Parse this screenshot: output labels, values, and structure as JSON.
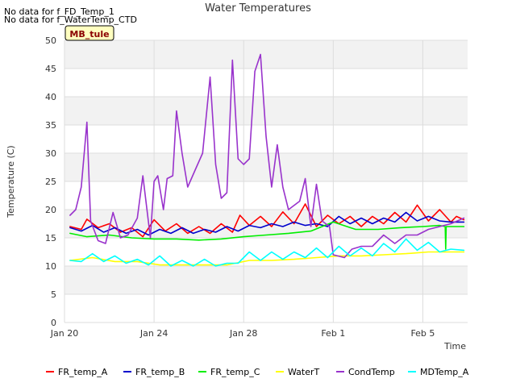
{
  "notices": [
    "No data for f_FD_Temp_1",
    "No data for f_WaterTemp_CTD"
  ],
  "site_badge": "MB_tule",
  "colors": {
    "plot_bg": "#f2f2f2",
    "band_white": "#ffffff",
    "grid": "#dddddd",
    "badge_bg": "#ffffc0",
    "badge_border": "#000000",
    "badge_text": "#8b0000"
  },
  "chart_data": {
    "type": "line",
    "title": "Water Temperatures",
    "xlabel": "Time",
    "ylabel": "Temperature (C)",
    "xlim": [
      "2024-01-20",
      "2024-02-07"
    ],
    "ylim": [
      0,
      50
    ],
    "x_ticks": [
      {
        "date": "2024-01-20",
        "label": "Jan 20"
      },
      {
        "date": "2024-01-24",
        "label": "Jan 24"
      },
      {
        "date": "2024-01-28",
        "label": "Jan 28"
      },
      {
        "date": "2024-02-01",
        "label": "Feb 1"
      },
      {
        "date": "2024-02-05",
        "label": "Feb 5"
      }
    ],
    "y_ticks": [
      0,
      5,
      10,
      15,
      20,
      25,
      30,
      35,
      40,
      45,
      50
    ],
    "grid": true,
    "legend_position": "bottom",
    "series": [
      {
        "name": "FR_temp_A",
        "color": "#ff0000",
        "points": [
          [
            "2024-01-20 06:00",
            17.0
          ],
          [
            "2024-01-20 18:00",
            16.5
          ],
          [
            "2024-01-21 00:00",
            18.3
          ],
          [
            "2024-01-21 12:00",
            16.8
          ],
          [
            "2024-01-22 00:00",
            17.5
          ],
          [
            "2024-01-22 12:00",
            16.0
          ],
          [
            "2024-01-23 00:00",
            16.8
          ],
          [
            "2024-01-23 12:00",
            15.2
          ],
          [
            "2024-01-24 00:00",
            18.2
          ],
          [
            "2024-01-24 12:00",
            16.2
          ],
          [
            "2024-01-25 00:00",
            17.5
          ],
          [
            "2024-01-25 12:00",
            15.8
          ],
          [
            "2024-01-26 00:00",
            17.0
          ],
          [
            "2024-01-26 12:00",
            15.8
          ],
          [
            "2024-01-27 00:00",
            17.5
          ],
          [
            "2024-01-27 12:00",
            16.0
          ],
          [
            "2024-01-27 20:00",
            19.0
          ],
          [
            "2024-01-28 06:00",
            17.2
          ],
          [
            "2024-01-28 18:00",
            18.8
          ],
          [
            "2024-01-29 06:00",
            17.0
          ],
          [
            "2024-01-29 18:00",
            19.6
          ],
          [
            "2024-01-30 06:00",
            17.5
          ],
          [
            "2024-01-30 18:00",
            21.0
          ],
          [
            "2024-01-31 06:00",
            17.0
          ],
          [
            "2024-01-31 18:00",
            19.0
          ],
          [
            "2024-02-01 06:00",
            17.5
          ],
          [
            "2024-02-01 18:00",
            18.8
          ],
          [
            "2024-02-02 06:00",
            17.0
          ],
          [
            "2024-02-02 18:00",
            18.8
          ],
          [
            "2024-02-03 06:00",
            17.5
          ],
          [
            "2024-02-03 18:00",
            19.5
          ],
          [
            "2024-02-04 06:00",
            17.8
          ],
          [
            "2024-02-04 18:00",
            20.8
          ],
          [
            "2024-02-05 06:00",
            18.0
          ],
          [
            "2024-02-05 18:00",
            20.0
          ],
          [
            "2024-02-06 06:00",
            17.8
          ],
          [
            "2024-02-06 12:00",
            18.8
          ],
          [
            "2024-02-06 20:00",
            18.2
          ]
        ]
      },
      {
        "name": "FR_temp_B",
        "color": "#0000cc",
        "points": [
          [
            "2024-01-20 06:00",
            16.8
          ],
          [
            "2024-01-20 18:00",
            16.2
          ],
          [
            "2024-01-21 06:00",
            17.2
          ],
          [
            "2024-01-21 18:00",
            16.0
          ],
          [
            "2024-01-22 06:00",
            16.8
          ],
          [
            "2024-01-22 18:00",
            15.8
          ],
          [
            "2024-01-23 06:00",
            16.5
          ],
          [
            "2024-01-23 18:00",
            15.5
          ],
          [
            "2024-01-24 06:00",
            16.5
          ],
          [
            "2024-01-24 18:00",
            15.8
          ],
          [
            "2024-01-25 06:00",
            16.8
          ],
          [
            "2024-01-25 18:00",
            15.8
          ],
          [
            "2024-01-26 06:00",
            16.5
          ],
          [
            "2024-01-26 18:00",
            16.0
          ],
          [
            "2024-01-27 06:00",
            17.0
          ],
          [
            "2024-01-27 18:00",
            16.2
          ],
          [
            "2024-01-28 06:00",
            17.2
          ],
          [
            "2024-01-28 18:00",
            16.8
          ],
          [
            "2024-01-29 06:00",
            17.5
          ],
          [
            "2024-01-29 18:00",
            17.0
          ],
          [
            "2024-01-30 06:00",
            17.8
          ],
          [
            "2024-01-30 18:00",
            17.2
          ],
          [
            "2024-01-31 06:00",
            17.5
          ],
          [
            "2024-01-31 18:00",
            17.0
          ],
          [
            "2024-02-01 06:00",
            18.8
          ],
          [
            "2024-02-01 18:00",
            17.5
          ],
          [
            "2024-02-02 06:00",
            18.5
          ],
          [
            "2024-02-02 18:00",
            17.5
          ],
          [
            "2024-02-03 06:00",
            18.5
          ],
          [
            "2024-02-03 18:00",
            17.8
          ],
          [
            "2024-02-04 06:00",
            19.5
          ],
          [
            "2024-02-04 18:00",
            18.0
          ],
          [
            "2024-02-05 06:00",
            18.8
          ],
          [
            "2024-02-05 18:00",
            18.0
          ],
          [
            "2024-02-06 06:00",
            17.8
          ],
          [
            "2024-02-06 20:00",
            17.8
          ]
        ]
      },
      {
        "name": "FR_temp_C",
        "color": "#00ee00",
        "points": [
          [
            "2024-01-20 06:00",
            15.8
          ],
          [
            "2024-01-21 00:00",
            15.2
          ],
          [
            "2024-01-22 00:00",
            15.5
          ],
          [
            "2024-01-23 00:00",
            15.0
          ],
          [
            "2024-01-24 00:00",
            14.8
          ],
          [
            "2024-01-25 00:00",
            14.8
          ],
          [
            "2024-01-26 00:00",
            14.6
          ],
          [
            "2024-01-27 00:00",
            14.8
          ],
          [
            "2024-01-28 00:00",
            15.2
          ],
          [
            "2024-01-29 00:00",
            15.5
          ],
          [
            "2024-01-30 00:00",
            15.8
          ],
          [
            "2024-01-31 00:00",
            16.2
          ],
          [
            "2024-02-01 00:00",
            17.8
          ],
          [
            "2024-02-02 00:00",
            16.5
          ],
          [
            "2024-02-03 00:00",
            16.5
          ],
          [
            "2024-02-04 00:00",
            16.8
          ],
          [
            "2024-02-05 00:00",
            17.0
          ],
          [
            "2024-02-05 18:00",
            17.2
          ],
          [
            "2024-02-06 00:00",
            17.0
          ],
          [
            "2024-02-06 00:30",
            13.0
          ],
          [
            "2024-02-06 01:00",
            17.0
          ],
          [
            "2024-02-06 20:00",
            17.0
          ]
        ]
      },
      {
        "name": "WaterT",
        "color": "#ffff00",
        "points": [
          [
            "2024-01-20 06:00",
            11.0
          ],
          [
            "2024-01-21 06:00",
            11.5
          ],
          [
            "2024-01-22 06:00",
            10.8
          ],
          [
            "2024-01-23 06:00",
            10.8
          ],
          [
            "2024-01-24 06:00",
            10.2
          ],
          [
            "2024-01-25 06:00",
            10.2
          ],
          [
            "2024-01-26 06:00",
            10.2
          ],
          [
            "2024-01-27 06:00",
            10.2
          ],
          [
            "2024-01-28 06:00",
            11.0
          ],
          [
            "2024-01-29 06:00",
            11.0
          ],
          [
            "2024-01-30 06:00",
            11.2
          ],
          [
            "2024-01-31 06:00",
            11.5
          ],
          [
            "2024-02-01 06:00",
            11.8
          ],
          [
            "2024-02-02 06:00",
            11.8
          ],
          [
            "2024-02-03 06:00",
            12.0
          ],
          [
            "2024-02-04 06:00",
            12.2
          ],
          [
            "2024-02-05 06:00",
            12.5
          ],
          [
            "2024-02-06 06:00",
            12.5
          ],
          [
            "2024-02-06 20:00",
            12.5
          ]
        ]
      },
      {
        "name": "CondTemp",
        "color": "#9933cc",
        "points": [
          [
            "2024-01-20 06:00",
            19.0
          ],
          [
            "2024-01-20 12:00",
            20.0
          ],
          [
            "2024-01-20 18:00",
            24.0
          ],
          [
            "2024-01-21 00:00",
            35.5
          ],
          [
            "2024-01-21 04:00",
            18.0
          ],
          [
            "2024-01-21 12:00",
            14.5
          ],
          [
            "2024-01-21 20:00",
            14.0
          ],
          [
            "2024-01-22 04:00",
            19.5
          ],
          [
            "2024-01-22 12:00",
            15.0
          ],
          [
            "2024-01-22 20:00",
            15.5
          ],
          [
            "2024-01-23 06:00",
            18.5
          ],
          [
            "2024-01-23 12:00",
            26.0
          ],
          [
            "2024-01-23 20:00",
            15.0
          ],
          [
            "2024-01-24 00:00",
            25.0
          ],
          [
            "2024-01-24 04:00",
            26.0
          ],
          [
            "2024-01-24 10:00",
            20.0
          ],
          [
            "2024-01-24 14:00",
            25.5
          ],
          [
            "2024-01-24 20:00",
            26.0
          ],
          [
            "2024-01-25 00:00",
            37.5
          ],
          [
            "2024-01-25 06:00",
            30.0
          ],
          [
            "2024-01-25 12:00",
            24.0
          ],
          [
            "2024-01-25 20:00",
            27.0
          ],
          [
            "2024-01-26 04:00",
            30.0
          ],
          [
            "2024-01-26 12:00",
            43.5
          ],
          [
            "2024-01-26 18:00",
            28.0
          ],
          [
            "2024-01-27 00:00",
            22.0
          ],
          [
            "2024-01-27 06:00",
            23.0
          ],
          [
            "2024-01-27 12:00",
            46.5
          ],
          [
            "2024-01-27 18:00",
            29.0
          ],
          [
            "2024-01-28 00:00",
            28.0
          ],
          [
            "2024-01-28 06:00",
            29.0
          ],
          [
            "2024-01-28 12:00",
            44.5
          ],
          [
            "2024-01-28 18:00",
            47.5
          ],
          [
            "2024-01-29 00:00",
            33.0
          ],
          [
            "2024-01-29 06:00",
            24.0
          ],
          [
            "2024-01-29 12:00",
            31.5
          ],
          [
            "2024-01-29 18:00",
            24.0
          ],
          [
            "2024-01-30 00:00",
            20.0
          ],
          [
            "2024-01-30 12:00",
            21.5
          ],
          [
            "2024-01-30 18:00",
            25.5
          ],
          [
            "2024-01-31 00:00",
            17.0
          ],
          [
            "2024-01-31 06:00",
            24.5
          ],
          [
            "2024-01-31 12:00",
            18.0
          ],
          [
            "2024-01-31 20:00",
            17.0
          ],
          [
            "2024-02-01 00:00",
            12.0
          ],
          [
            "2024-02-01 12:00",
            11.5
          ],
          [
            "2024-02-01 20:00",
            13.0
          ],
          [
            "2024-02-02 06:00",
            13.5
          ],
          [
            "2024-02-02 18:00",
            13.5
          ],
          [
            "2024-02-03 06:00",
            15.5
          ],
          [
            "2024-02-03 18:00",
            14.0
          ],
          [
            "2024-02-04 06:00",
            15.5
          ],
          [
            "2024-02-04 18:00",
            15.5
          ],
          [
            "2024-02-05 06:00",
            16.5
          ],
          [
            "2024-02-05 18:00",
            17.0
          ],
          [
            "2024-02-06 06:00",
            17.5
          ],
          [
            "2024-02-06 20:00",
            18.5
          ]
        ]
      },
      {
        "name": "MDTemp_A",
        "color": "#00ffff",
        "points": [
          [
            "2024-01-20 06:00",
            11.0
          ],
          [
            "2024-01-20 18:00",
            10.8
          ],
          [
            "2024-01-21 06:00",
            12.2
          ],
          [
            "2024-01-21 18:00",
            10.8
          ],
          [
            "2024-01-22 06:00",
            11.8
          ],
          [
            "2024-01-22 18:00",
            10.5
          ],
          [
            "2024-01-23 06:00",
            11.2
          ],
          [
            "2024-01-23 18:00",
            10.2
          ],
          [
            "2024-01-24 06:00",
            11.8
          ],
          [
            "2024-01-24 18:00",
            10.0
          ],
          [
            "2024-01-25 06:00",
            11.0
          ],
          [
            "2024-01-25 18:00",
            10.0
          ],
          [
            "2024-01-26 06:00",
            11.2
          ],
          [
            "2024-01-26 18:00",
            10.0
          ],
          [
            "2024-01-27 06:00",
            10.5
          ],
          [
            "2024-01-27 18:00",
            10.5
          ],
          [
            "2024-01-28 06:00",
            12.5
          ],
          [
            "2024-01-28 18:00",
            11.0
          ],
          [
            "2024-01-29 06:00",
            12.5
          ],
          [
            "2024-01-29 18:00",
            11.2
          ],
          [
            "2024-01-30 06:00",
            12.5
          ],
          [
            "2024-01-30 18:00",
            11.5
          ],
          [
            "2024-01-31 06:00",
            13.2
          ],
          [
            "2024-01-31 18:00",
            11.5
          ],
          [
            "2024-02-01 06:00",
            13.5
          ],
          [
            "2024-02-01 18:00",
            11.8
          ],
          [
            "2024-02-02 06:00",
            13.2
          ],
          [
            "2024-02-02 18:00",
            11.8
          ],
          [
            "2024-02-03 06:00",
            14.0
          ],
          [
            "2024-02-03 18:00",
            12.5
          ],
          [
            "2024-02-04 06:00",
            14.8
          ],
          [
            "2024-02-04 18:00",
            12.8
          ],
          [
            "2024-02-05 06:00",
            14.2
          ],
          [
            "2024-02-05 18:00",
            12.5
          ],
          [
            "2024-02-06 06:00",
            13.0
          ],
          [
            "2024-02-06 20:00",
            12.8
          ]
        ]
      }
    ]
  }
}
